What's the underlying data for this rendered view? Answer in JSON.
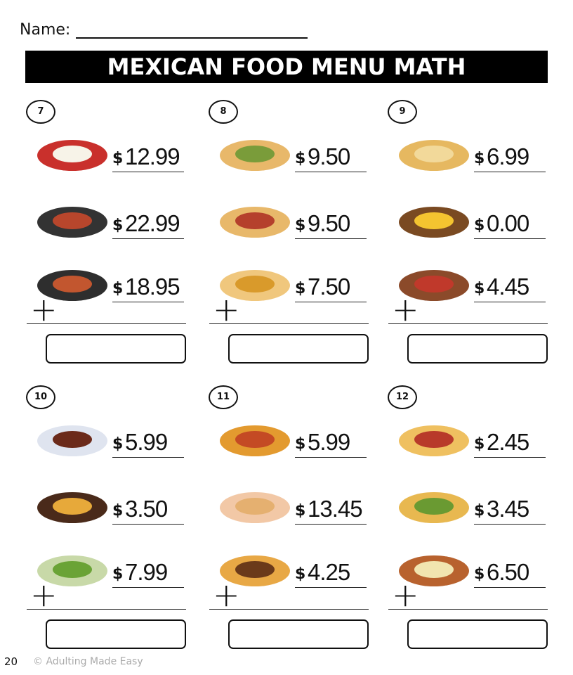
{
  "header": {
    "name_label": "Name:",
    "title": "MEXICAN FOOD MENU MATH"
  },
  "problems": [
    {
      "number": "7",
      "items": [
        {
          "icon": "huevos-rancheros-icon",
          "color": "#c9302c",
          "inner": "#f7f3e8",
          "price": "12.99"
        },
        {
          "icon": "fajita-skillet-icon",
          "color": "#333333",
          "inner": "#b8462c",
          "price": "22.99"
        },
        {
          "icon": "fajita-pan-icon",
          "color": "#2e2e2e",
          "inner": "#c2562f",
          "price": "18.95"
        }
      ]
    },
    {
      "number": "8",
      "items": [
        {
          "icon": "burrito-icon",
          "color": "#e8b86a",
          "inner": "#7a9c3a",
          "price": "9.50"
        },
        {
          "icon": "burrito-icon",
          "color": "#e8b86a",
          "inner": "#b5402c",
          "price": "9.50"
        },
        {
          "icon": "wrapped-burrito-icon",
          "color": "#f0c77d",
          "inner": "#d99a2b",
          "price": "7.50"
        }
      ]
    },
    {
      "number": "9",
      "items": [
        {
          "icon": "quesadilla-icon",
          "color": "#e6b860",
          "inner": "#f2d99a",
          "price": "6.99"
        },
        {
          "icon": "nachos-salsa-icon",
          "color": "#7a4a22",
          "inner": "#f4c430",
          "price": "0.00"
        },
        {
          "icon": "chili-bowl-icon",
          "color": "#8b4a2a",
          "inner": "#c0392b",
          "price": "4.45"
        }
      ]
    },
    {
      "number": "10",
      "items": [
        {
          "icon": "mole-rice-icon",
          "color": "#dfe4ef",
          "inner": "#6b2a1a",
          "price": "5.99"
        },
        {
          "icon": "flan-icon",
          "color": "#4a2a1a",
          "inner": "#e7a93a",
          "price": "3.50"
        },
        {
          "icon": "guacamole-icon",
          "color": "#c8d9a8",
          "inner": "#6aa336",
          "price": "7.99"
        }
      ]
    },
    {
      "number": "11",
      "items": [
        {
          "icon": "pozole-bowl-icon",
          "color": "#e39a2f",
          "inner": "#c44a24",
          "price": "5.99"
        },
        {
          "icon": "enchiladas-plate-icon",
          "color": "#f2c8a6",
          "inner": "#e5b070",
          "price": "13.45"
        },
        {
          "icon": "churros-icon",
          "color": "#e8a845",
          "inner": "#6b3a1a",
          "price": "4.25"
        }
      ]
    },
    {
      "number": "12",
      "items": [
        {
          "icon": "taco-icon",
          "color": "#efc060",
          "inner": "#b83a2a",
          "price": "2.45"
        },
        {
          "icon": "taco-icon",
          "color": "#e8b850",
          "inner": "#6a9a32",
          "price": "3.45"
        },
        {
          "icon": "chips-dip-bowl-icon",
          "color": "#b8622e",
          "inner": "#f1e5b0",
          "price": "6.50"
        }
      ]
    }
  ],
  "currency": "$",
  "plus": "+",
  "footer": {
    "page": "20",
    "copyright": "© Adulting Made Easy"
  }
}
